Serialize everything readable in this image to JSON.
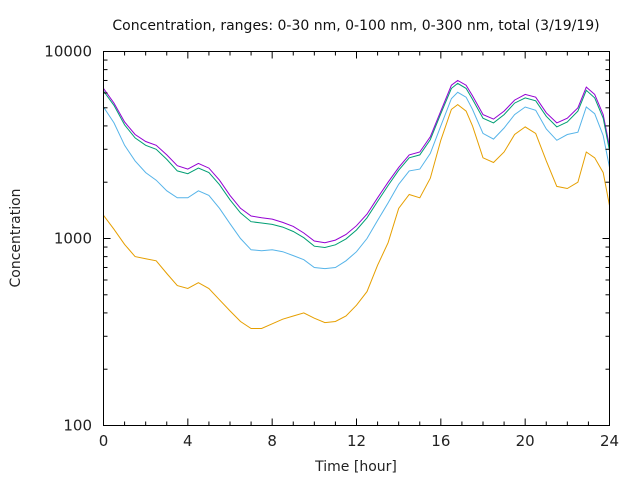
{
  "chart_data": {
    "type": "line",
    "title": "Concentration, ranges: 0-30 nm, 0-100 nm, 0-300 nm, total (3/19/19)",
    "xlabel": "Time [hour]",
    "ylabel": "Concentration",
    "xlim": [
      0,
      24
    ],
    "ylim": [
      100,
      10000
    ],
    "yscale": "log",
    "xticks": [
      0,
      4,
      8,
      12,
      16,
      20,
      24
    ],
    "xtick_labels": [
      "0",
      "4",
      "8",
      "12",
      "16",
      "20",
      "24"
    ],
    "yticks": [
      100,
      1000,
      10000
    ],
    "ytick_labels": [
      "100",
      "1000",
      "10000"
    ],
    "grid": false,
    "legend": "none",
    "x": [
      0,
      0.5,
      1,
      1.5,
      2,
      2.5,
      3,
      3.5,
      4,
      4.5,
      5,
      5.5,
      6,
      6.5,
      7,
      7.5,
      8,
      8.5,
      9,
      9.5,
      10,
      10.5,
      11,
      11.5,
      12,
      12.5,
      13,
      13.5,
      14,
      14.5,
      15,
      15.5,
      16,
      16.5,
      16.8,
      17.2,
      17.5,
      18,
      18.5,
      19,
      19.5,
      20,
      20.5,
      21,
      21.5,
      22,
      22.5,
      22.9,
      23.3,
      23.7,
      24
    ],
    "series": [
      {
        "name": "total",
        "color": "#9400d3",
        "values": [
          6350,
          5300,
          4200,
          3600,
          3300,
          3150,
          2800,
          2450,
          2350,
          2520,
          2380,
          2050,
          1700,
          1450,
          1320,
          1290,
          1270,
          1220,
          1160,
          1070,
          970,
          950,
          980,
          1050,
          1170,
          1350,
          1650,
          2000,
          2400,
          2800,
          2900,
          3500,
          4800,
          6600,
          7000,
          6600,
          5800,
          4600,
          4350,
          4800,
          5500,
          5900,
          5700,
          4700,
          4150,
          4400,
          5000,
          6450,
          5900,
          4600,
          3100
        ]
      },
      {
        "name": "0-300 nm",
        "color": "#009e73",
        "values": [
          6150,
          5150,
          4050,
          3450,
          3150,
          3000,
          2650,
          2300,
          2220,
          2380,
          2250,
          1940,
          1610,
          1370,
          1230,
          1210,
          1190,
          1150,
          1090,
          1010,
          910,
          895,
          925,
          995,
          1110,
          1290,
          1580,
          1920,
          2320,
          2700,
          2800,
          3380,
          4650,
          6350,
          6750,
          6350,
          5550,
          4400,
          4150,
          4600,
          5300,
          5650,
          5450,
          4500,
          3950,
          4200,
          4800,
          6200,
          5650,
          4400,
          2950
        ]
      },
      {
        "name": "0-100 nm",
        "color": "#56b4e9",
        "values": [
          5050,
          4150,
          3150,
          2600,
          2250,
          2050,
          1800,
          1650,
          1650,
          1800,
          1700,
          1450,
          1200,
          1000,
          870,
          860,
          870,
          850,
          810,
          770,
          700,
          690,
          700,
          760,
          850,
          1000,
          1250,
          1550,
          1950,
          2300,
          2350,
          2850,
          4000,
          5600,
          6050,
          5700,
          4900,
          3650,
          3400,
          3900,
          4600,
          5050,
          4850,
          3850,
          3350,
          3600,
          3700,
          5050,
          4650,
          3550,
          2400
        ]
      },
      {
        "name": "0-30 nm",
        "color": "#e69f00",
        "values": [
          1330,
          1120,
          930,
          800,
          780,
          760,
          650,
          560,
          540,
          580,
          540,
          470,
          410,
          360,
          330,
          330,
          350,
          370,
          385,
          400,
          375,
          355,
          360,
          385,
          440,
          520,
          720,
          950,
          1450,
          1720,
          1650,
          2100,
          3350,
          4900,
          5200,
          4800,
          4000,
          2700,
          2550,
          2900,
          3600,
          3950,
          3650,
          2600,
          1900,
          1850,
          2000,
          2900,
          2700,
          2250,
          1500
        ]
      }
    ]
  }
}
